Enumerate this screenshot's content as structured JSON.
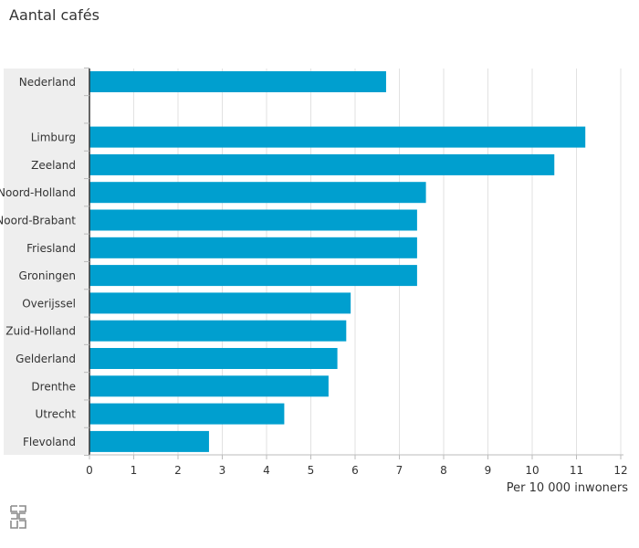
{
  "chart_data": {
    "type": "bar",
    "orientation": "horizontal",
    "title": "Aantal cafés",
    "xlabel": "Per 10 000 inwoners",
    "ylabel": "",
    "xlim": [
      0,
      12
    ],
    "xticks": [
      "0",
      "1",
      "2",
      "3",
      "4",
      "5",
      "6",
      "7",
      "8",
      "9",
      "10",
      "11",
      "12"
    ],
    "grid": true,
    "categories": [
      "Nederland",
      "",
      "Limburg",
      "Zeeland",
      "Noord-Holland",
      "Noord-Brabant",
      "Friesland",
      "Groningen",
      "Overijssel",
      "Zuid-Holland",
      "Gelderland",
      "Drenthe",
      "Utrecht",
      "Flevoland"
    ],
    "values": [
      6.7,
      null,
      11.2,
      10.5,
      7.6,
      7.4,
      7.4,
      7.4,
      5.9,
      5.8,
      5.6,
      5.4,
      4.4,
      2.7
    ],
    "bar_color": "#009fcf",
    "label_band_color": "#eeeeee",
    "grid_color": "#e2e2e2"
  },
  "source_logo": {
    "icon": "cbs-logo-icon"
  }
}
